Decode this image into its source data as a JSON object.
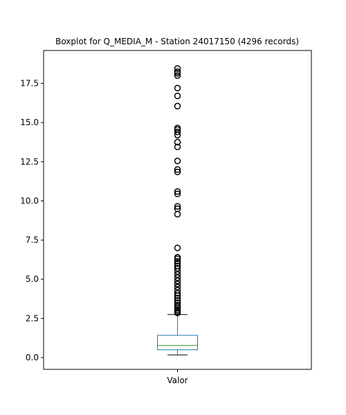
{
  "chart_data": {
    "type": "boxplot",
    "title": "Boxplot for Q_MEDIA_M - Station 24017150 (4296 records)",
    "xlabel": "",
    "ylabel": "",
    "categories": [
      "Valor"
    ],
    "ylim": [
      -0.75,
      19.6
    ],
    "yticks": [
      0.0,
      2.5,
      5.0,
      7.5,
      10.0,
      12.5,
      15.0,
      17.5
    ],
    "ytick_labels": [
      "0.0",
      "2.5",
      "5.0",
      "7.5",
      "10.0",
      "12.5",
      "15.0",
      "17.5"
    ],
    "grid": false,
    "box": {
      "whisker_low": 0.17,
      "q1": 0.5,
      "median": 0.78,
      "q3": 1.42,
      "whisker_high": 2.75
    },
    "outliers": [
      2.85,
      2.95,
      3.05,
      3.15,
      3.25,
      3.35,
      3.5,
      3.65,
      3.8,
      3.95,
      4.1,
      4.3,
      4.5,
      4.7,
      4.9,
      5.1,
      5.3,
      5.5,
      5.7,
      5.85,
      6.0,
      6.15,
      6.3,
      6.4,
      7.0,
      9.15,
      9.5,
      9.65,
      10.45,
      10.6,
      11.85,
      12.0,
      12.55,
      13.45,
      13.75,
      14.2,
      14.4,
      14.55,
      14.65,
      16.05,
      16.7,
      17.2,
      18.0,
      18.15,
      18.25,
      18.45
    ],
    "colors": {
      "box": "#1f77b4",
      "median": "#2ca02c",
      "whisker": "#1f77b4",
      "cap": "#000000",
      "outlier": "#000000",
      "axes": "#000000"
    }
  }
}
